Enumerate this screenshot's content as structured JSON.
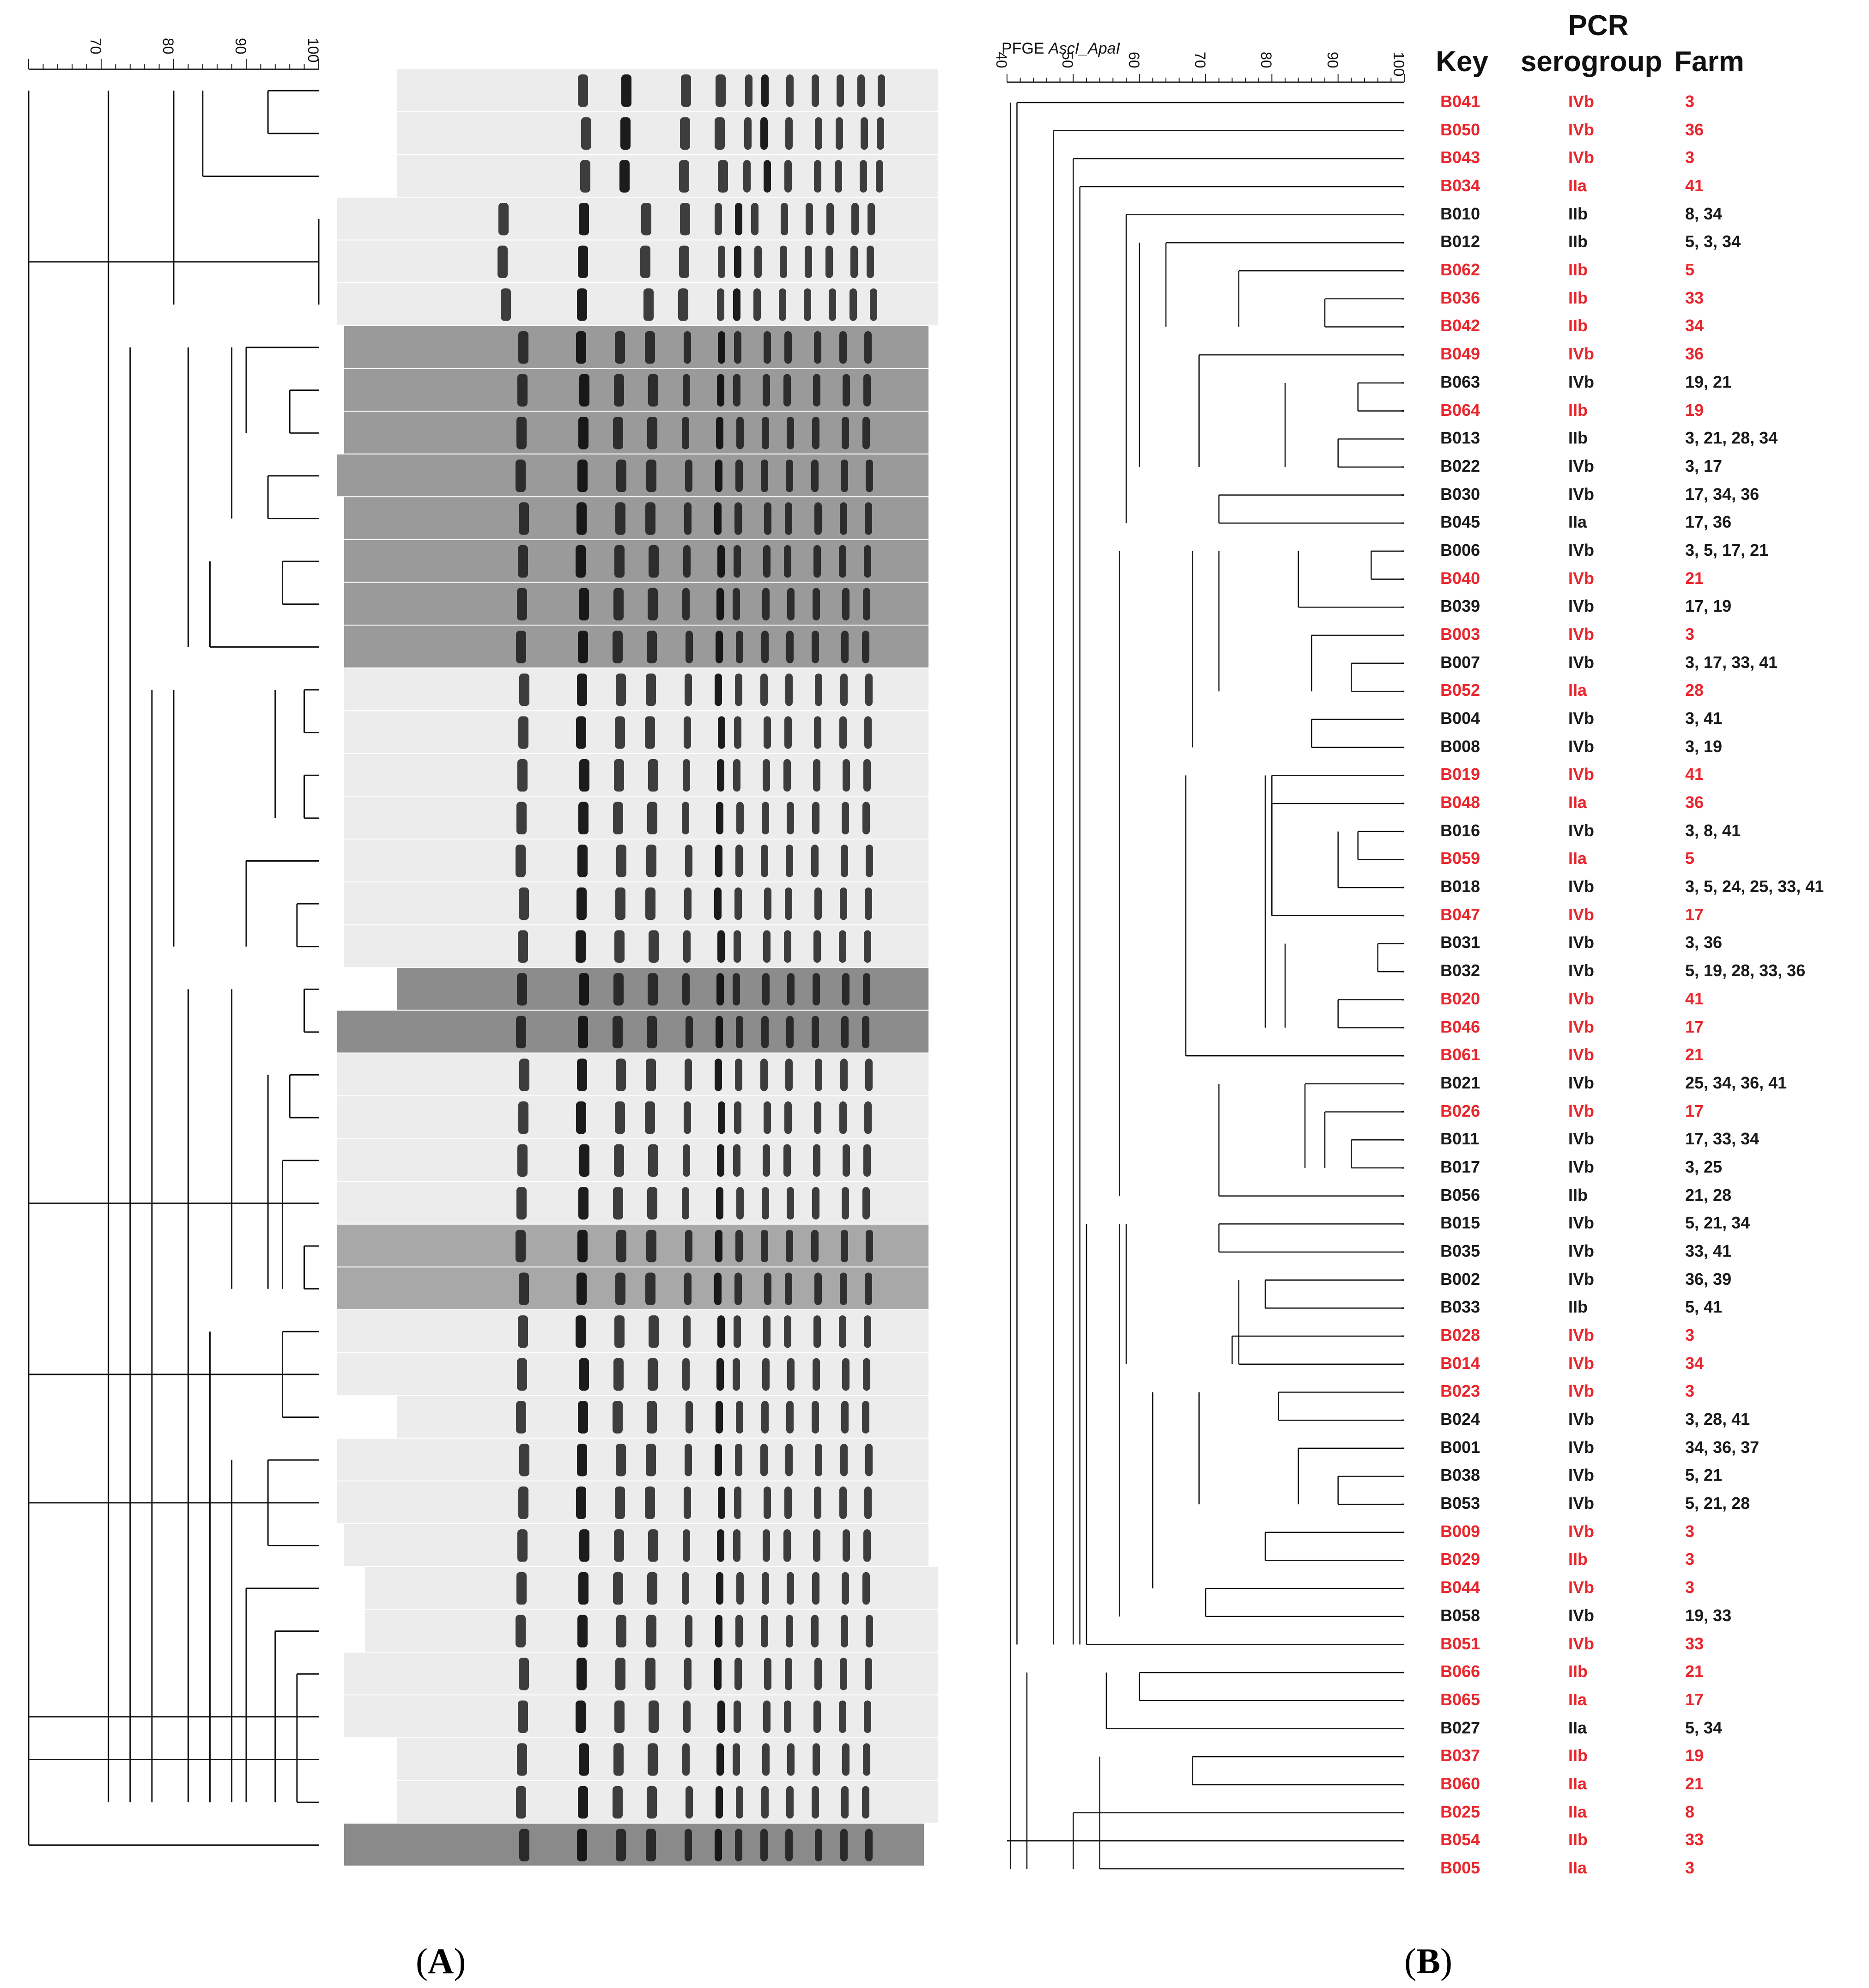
{
  "panels": {
    "a_label": "A",
    "b_label": "B"
  },
  "panel_b": {
    "pfge_prefix": "PFGE",
    "pfge_enzymes": "AscI_ApaI",
    "headers": {
      "key": "Key",
      "pcr_line1": "PCR",
      "pcr_line2": "serogroup",
      "farm": "Farm"
    }
  },
  "colors": {
    "highlight": "#e8262c",
    "normal": "#1a1a1a",
    "gel_light": "#ececec",
    "gel_dark": "#8f8f8f",
    "band": "#111111"
  },
  "chart_data": {
    "type": "dendrogram",
    "panel_a_scale": {
      "ticks": [
        "70",
        "80",
        "90",
        "100"
      ],
      "range": [
        60,
        100
      ]
    },
    "panel_b_scale": {
      "ticks": [
        "40",
        "50",
        "60",
        "70",
        "80",
        "90",
        "100"
      ],
      "range": [
        40,
        100
      ]
    },
    "isolates": [
      {
        "key": "B041",
        "serogroup": "IVb",
        "farm": "3",
        "highlight": true
      },
      {
        "key": "B050",
        "serogroup": "IVb",
        "farm": "36",
        "highlight": true
      },
      {
        "key": "B043",
        "serogroup": "IVb",
        "farm": "3",
        "highlight": true
      },
      {
        "key": "B034",
        "serogroup": "IIa",
        "farm": "41",
        "highlight": true
      },
      {
        "key": "B010",
        "serogroup": "IIb",
        "farm": "8, 34",
        "highlight": false
      },
      {
        "key": "B012",
        "serogroup": "IIb",
        "farm": "5, 3, 34",
        "highlight": false
      },
      {
        "key": "B062",
        "serogroup": "IIb",
        "farm": "5",
        "highlight": true
      },
      {
        "key": "B036",
        "serogroup": "IIb",
        "farm": "33",
        "highlight": true
      },
      {
        "key": "B042",
        "serogroup": "IIb",
        "farm": "34",
        "highlight": true
      },
      {
        "key": "B049",
        "serogroup": "IVb",
        "farm": "36",
        "highlight": true
      },
      {
        "key": "B063",
        "serogroup": "IVb",
        "farm": "19, 21",
        "highlight": false
      },
      {
        "key": "B064",
        "serogroup": "IIb",
        "farm": "19",
        "highlight": true
      },
      {
        "key": "B013",
        "serogroup": "IIb",
        "farm": "3, 21, 28, 34",
        "highlight": false
      },
      {
        "key": "B022",
        "serogroup": "IVb",
        "farm": "3, 17",
        "highlight": false
      },
      {
        "key": "B030",
        "serogroup": "IVb",
        "farm": "17, 34, 36",
        "highlight": false
      },
      {
        "key": "B045",
        "serogroup": "IIa",
        "farm": "17, 36",
        "highlight": false
      },
      {
        "key": "B006",
        "serogroup": "IVb",
        "farm": "3, 5, 17, 21",
        "highlight": false
      },
      {
        "key": "B040",
        "serogroup": "IVb",
        "farm": "21",
        "highlight": true
      },
      {
        "key": "B039",
        "serogroup": "IVb",
        "farm": "17, 19",
        "highlight": false
      },
      {
        "key": "B003",
        "serogroup": "IVb",
        "farm": "3",
        "highlight": true
      },
      {
        "key": "B007",
        "serogroup": "IVb",
        "farm": "3, 17, 33, 41",
        "highlight": false
      },
      {
        "key": "B052",
        "serogroup": "IIa",
        "farm": "28",
        "highlight": true
      },
      {
        "key": "B004",
        "serogroup": "IVb",
        "farm": "3, 41",
        "highlight": false
      },
      {
        "key": "B008",
        "serogroup": "IVb",
        "farm": "3, 19",
        "highlight": false
      },
      {
        "key": "B019",
        "serogroup": "IVb",
        "farm": "41",
        "highlight": true
      },
      {
        "key": "B048",
        "serogroup": "IIa",
        "farm": "36",
        "highlight": true
      },
      {
        "key": "B016",
        "serogroup": "IVb",
        "farm": "3, 8, 41",
        "highlight": false
      },
      {
        "key": "B059",
        "serogroup": "IIa",
        "farm": "5",
        "highlight": true
      },
      {
        "key": "B018",
        "serogroup": "IVb",
        "farm": "3, 5, 24, 25, 33, 41",
        "highlight": false
      },
      {
        "key": "B047",
        "serogroup": "IVb",
        "farm": "17",
        "highlight": true
      },
      {
        "key": "B031",
        "serogroup": "IVb",
        "farm": "3, 36",
        "highlight": false
      },
      {
        "key": "B032",
        "serogroup": "IVb",
        "farm": "5, 19, 28, 33, 36",
        "highlight": false
      },
      {
        "key": "B020",
        "serogroup": "IVb",
        "farm": "41",
        "highlight": true
      },
      {
        "key": "B046",
        "serogroup": "IVb",
        "farm": "17",
        "highlight": true
      },
      {
        "key": "B061",
        "serogroup": "IVb",
        "farm": "21",
        "highlight": true
      },
      {
        "key": "B021",
        "serogroup": "IVb",
        "farm": "25, 34, 36, 41",
        "highlight": false
      },
      {
        "key": "B026",
        "serogroup": "IVb",
        "farm": "17",
        "highlight": true
      },
      {
        "key": "B011",
        "serogroup": "IVb",
        "farm": "17, 33, 34",
        "highlight": false
      },
      {
        "key": "B017",
        "serogroup": "IVb",
        "farm": "3, 25",
        "highlight": false
      },
      {
        "key": "B056",
        "serogroup": "IIb",
        "farm": "21, 28",
        "highlight": false
      },
      {
        "key": "B015",
        "serogroup": "IVb",
        "farm": "5, 21, 34",
        "highlight": false
      },
      {
        "key": "B035",
        "serogroup": "IVb",
        "farm": "33, 41",
        "highlight": false
      },
      {
        "key": "B002",
        "serogroup": "IVb",
        "farm": "36, 39",
        "highlight": false
      },
      {
        "key": "B033",
        "serogroup": "IIb",
        "farm": "5, 41",
        "highlight": false
      },
      {
        "key": "B028",
        "serogroup": "IVb",
        "farm": "3",
        "highlight": true
      },
      {
        "key": "B014",
        "serogroup": "IVb",
        "farm": "34",
        "highlight": true
      },
      {
        "key": "B023",
        "serogroup": "IVb",
        "farm": "3",
        "highlight": true
      },
      {
        "key": "B024",
        "serogroup": "IVb",
        "farm": "3, 28, 41",
        "highlight": false
      },
      {
        "key": "B001",
        "serogroup": "IVb",
        "farm": "34, 36, 37",
        "highlight": false
      },
      {
        "key": "B038",
        "serogroup": "IVb",
        "farm": "5, 21",
        "highlight": false
      },
      {
        "key": "B053",
        "serogroup": "IVb",
        "farm": "5, 21, 28",
        "highlight": false
      },
      {
        "key": "B009",
        "serogroup": "IVb",
        "farm": "3",
        "highlight": true
      },
      {
        "key": "B029",
        "serogroup": "IIb",
        "farm": "3",
        "highlight": true
      },
      {
        "key": "B044",
        "serogroup": "IVb",
        "farm": "3",
        "highlight": true
      },
      {
        "key": "B058",
        "serogroup": "IVb",
        "farm": "19, 33",
        "highlight": false
      },
      {
        "key": "B051",
        "serogroup": "IVb",
        "farm": "33",
        "highlight": true
      },
      {
        "key": "B066",
        "serogroup": "IIb",
        "farm": "21",
        "highlight": true
      },
      {
        "key": "B065",
        "serogroup": "IIa",
        "farm": "17",
        "highlight": true
      },
      {
        "key": "B027",
        "serogroup": "IIa",
        "farm": "5, 34",
        "highlight": false
      },
      {
        "key": "B037",
        "serogroup": "IIb",
        "farm": "19",
        "highlight": true
      },
      {
        "key": "B060",
        "serogroup": "IIa",
        "farm": "21",
        "highlight": true
      },
      {
        "key": "B025",
        "serogroup": "IIa",
        "farm": "8",
        "highlight": true
      },
      {
        "key": "B054",
        "serogroup": "IIb",
        "farm": "33",
        "highlight": true
      },
      {
        "key": "B005",
        "serogroup": "IIa",
        "farm": "3",
        "highlight": true
      }
    ],
    "panel_a_lanes": 42
  }
}
